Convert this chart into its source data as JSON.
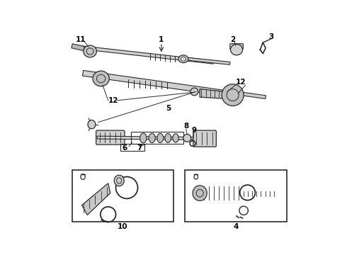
{
  "bg_color": "#ffffff",
  "line_color": "#2a2a2a",
  "figsize": [
    4.9,
    3.6
  ],
  "dpi": 100,
  "label_fs": 7.5
}
